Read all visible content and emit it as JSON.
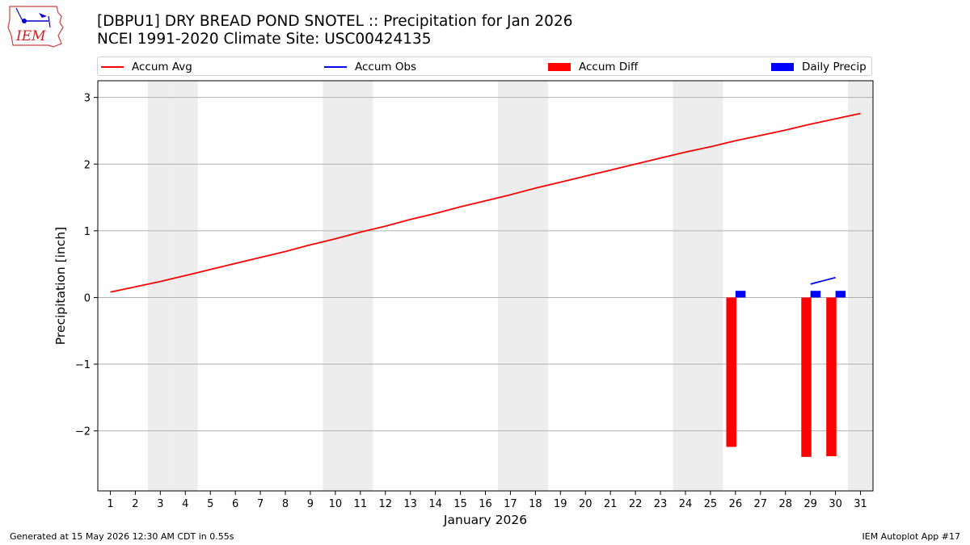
{
  "header": {
    "title_line1": "[DBPU1] DRY BREAD POND SNOTEL :: Precipitation for Jan 2026",
    "title_line2": "NCEI 1991-2020 Climate Site: USC00424135"
  },
  "logo": {
    "text": "IEM"
  },
  "legend": {
    "items": [
      {
        "label": "Accum Avg",
        "color": "#ff0000",
        "kind": "line"
      },
      {
        "label": "Accum Obs",
        "color": "#0000ff",
        "kind": "line"
      },
      {
        "label": "Accum Diff",
        "color": "#ff0000",
        "kind": "bar"
      },
      {
        "label": "Daily Precip",
        "color": "#0000ff",
        "kind": "bar"
      }
    ]
  },
  "footer": {
    "left": "Generated at 15 May 2026 12:30 AM CDT in 0.55s",
    "right": "IEM Autoplot App #17"
  },
  "chart_data": {
    "type": "line",
    "xlabel": "January 2026",
    "ylabel": "Precipitation [inch]",
    "xlim": [
      0.5,
      31.5
    ],
    "ylim": [
      -2.9,
      3.25
    ],
    "x_ticks": [
      1,
      2,
      3,
      4,
      5,
      6,
      7,
      8,
      9,
      10,
      11,
      12,
      13,
      14,
      15,
      16,
      17,
      18,
      19,
      20,
      21,
      22,
      23,
      24,
      25,
      26,
      27,
      28,
      29,
      30,
      31
    ],
    "y_ticks": [
      -2,
      -1,
      0,
      1,
      2,
      3
    ],
    "y_tick_labels": [
      "−2",
      "−1",
      "0",
      "1",
      "2",
      "3"
    ],
    "grid": "horizontal",
    "weekend_days": [
      3,
      4,
      10,
      11,
      17,
      18,
      24,
      25,
      31
    ],
    "accum_avg": {
      "name": "Accum Avg",
      "color": "#ff0000",
      "x": [
        1,
        2,
        3,
        4,
        5,
        6,
        7,
        8,
        9,
        10,
        11,
        12,
        13,
        14,
        15,
        16,
        17,
        18,
        19,
        20,
        21,
        22,
        23,
        24,
        25,
        26,
        27,
        28,
        29,
        30,
        31
      ],
      "y": [
        0.08,
        0.16,
        0.24,
        0.33,
        0.42,
        0.51,
        0.6,
        0.69,
        0.79,
        0.88,
        0.98,
        1.07,
        1.17,
        1.26,
        1.36,
        1.45,
        1.54,
        1.64,
        1.73,
        1.82,
        1.91,
        2.0,
        2.09,
        2.18,
        2.26,
        2.35,
        2.43,
        2.51,
        2.6,
        2.68,
        2.76
      ]
    },
    "accum_obs": {
      "name": "Accum Obs",
      "color": "#0000ff",
      "x": [
        29,
        30
      ],
      "y": [
        0.2,
        0.3
      ]
    },
    "accum_diff": {
      "name": "Accum Diff",
      "color": "#ff0000",
      "x": [
        26,
        29,
        30
      ],
      "y": [
        -2.24,
        -2.39,
        -2.38
      ]
    },
    "daily_precip": {
      "name": "Daily Precip",
      "color": "#0000ff",
      "x": [
        26,
        29,
        30
      ],
      "y": [
        0.1,
        0.1,
        0.1
      ]
    }
  }
}
